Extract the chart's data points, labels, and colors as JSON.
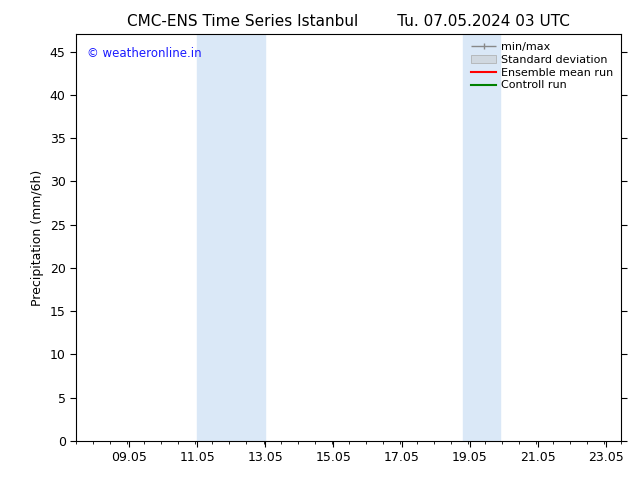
{
  "title_left": "CMC-ENS Time Series Istanbul",
  "title_right": "Tu. 07.05.2024 03 UTC",
  "ylabel": "Precipitation (mm/6h)",
  "xlim_left": 7.5,
  "xlim_right": 23.5,
  "ylim_bottom": 0,
  "ylim_top": 47,
  "yticks": [
    0,
    5,
    10,
    15,
    20,
    25,
    30,
    35,
    40,
    45
  ],
  "xticks": [
    9.05,
    11.05,
    13.05,
    15.05,
    17.05,
    19.05,
    21.05,
    23.05
  ],
  "xtick_labels": [
    "09.05",
    "11.05",
    "13.05",
    "15.05",
    "17.05",
    "19.05",
    "21.05",
    "23.05"
  ],
  "shaded_regions": [
    {
      "x_start": 11.05,
      "x_end": 13.05
    },
    {
      "x_start": 18.85,
      "x_end": 19.95
    }
  ],
  "shaded_color": "#dae8f7",
  "watermark_text": "© weatheronline.in",
  "watermark_color": "#1a1aff",
  "bg_color": "#ffffff",
  "spine_color": "#000000",
  "title_fontsize": 11,
  "tick_fontsize": 9,
  "ylabel_fontsize": 9,
  "legend_fontsize": 8
}
